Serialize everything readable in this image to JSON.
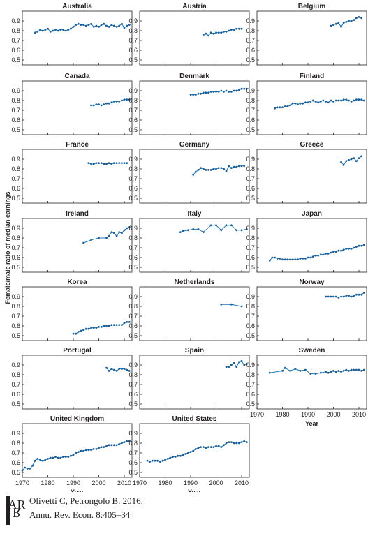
{
  "figure": {
    "ylabel": "Female/male ratio of median earnings",
    "xlabel": "Year"
  },
  "citation": {
    "line1": "Olivetti C, Petrongolo B. 2016.",
    "line2": "Annu. Rev. Econ. 8:405–34",
    "logo_text": "AR"
  },
  "colors": {
    "series": "#1f77b4",
    "axis": "#231f20"
  },
  "chart_data": {
    "type": "line",
    "layout": "small-multiples",
    "xlim": [
      1970,
      2013
    ],
    "ylim": [
      0.45,
      1.0
    ],
    "xticks": [
      "1970",
      "1980",
      "1990",
      "2000",
      "2010"
    ],
    "yticks": [
      "0.5",
      "0.6",
      "0.7",
      "0.8",
      "0.9"
    ],
    "grid": false,
    "panels": [
      {
        "name": "Australia",
        "x": [
          1975,
          1976,
          1977,
          1978,
          1979,
          1980,
          1981,
          1982,
          1983,
          1984,
          1985,
          1986,
          1987,
          1988,
          1989,
          1990,
          1991,
          1992,
          1993,
          1994,
          1995,
          1996,
          1997,
          1998,
          1999,
          2000,
          2001,
          2002,
          2003,
          2004,
          2005,
          2006,
          2007,
          2008,
          2009,
          2010,
          2011,
          2012
        ],
        "y": [
          0.78,
          0.79,
          0.81,
          0.8,
          0.81,
          0.82,
          0.79,
          0.8,
          0.81,
          0.8,
          0.81,
          0.81,
          0.8,
          0.81,
          0.82,
          0.84,
          0.86,
          0.87,
          0.86,
          0.86,
          0.85,
          0.86,
          0.87,
          0.84,
          0.85,
          0.84,
          0.86,
          0.87,
          0.85,
          0.84,
          0.86,
          0.85,
          0.84,
          0.85,
          0.87,
          0.83,
          0.85,
          0.86
        ]
      },
      {
        "name": "Austria",
        "x": [
          1995,
          1996,
          1997,
          1998,
          1999,
          2000,
          2001,
          2002,
          2003,
          2004,
          2005,
          2006,
          2007,
          2008,
          2009,
          2010
        ],
        "y": [
          0.76,
          0.77,
          0.75,
          0.78,
          0.77,
          0.78,
          0.78,
          0.78,
          0.79,
          0.79,
          0.8,
          0.81,
          0.81,
          0.82,
          0.82,
          0.82
        ]
      },
      {
        "name": "Belgium",
        "x": [
          1999,
          2000,
          2001,
          2002,
          2003,
          2004,
          2005,
          2006,
          2007,
          2008,
          2009,
          2010,
          2011
        ],
        "y": [
          0.85,
          0.86,
          0.87,
          0.88,
          0.84,
          0.88,
          0.89,
          0.9,
          0.9,
          0.91,
          0.93,
          0.94,
          0.93
        ]
      },
      {
        "name": "Canada",
        "x": [
          1997,
          1998,
          1999,
          2000,
          2001,
          2002,
          2003,
          2004,
          2005,
          2006,
          2007,
          2008,
          2009,
          2010,
          2011,
          2012
        ],
        "y": [
          0.75,
          0.75,
          0.76,
          0.76,
          0.75,
          0.76,
          0.77,
          0.77,
          0.78,
          0.79,
          0.79,
          0.79,
          0.8,
          0.81,
          0.81,
          0.81
        ]
      },
      {
        "name": "Denmark",
        "x": [
          1990,
          1991,
          1992,
          1993,
          1994,
          1995,
          1996,
          1997,
          1998,
          1999,
          2000,
          2001,
          2002,
          2003,
          2004,
          2005,
          2006,
          2007,
          2008,
          2009,
          2010,
          2011,
          2012
        ],
        "y": [
          0.86,
          0.86,
          0.86,
          0.87,
          0.87,
          0.88,
          0.88,
          0.88,
          0.89,
          0.89,
          0.89,
          0.89,
          0.9,
          0.89,
          0.9,
          0.89,
          0.89,
          0.9,
          0.9,
          0.91,
          0.92,
          0.92,
          0.92
        ]
      },
      {
        "name": "Finland",
        "x": [
          1977,
          1978,
          1979,
          1980,
          1981,
          1982,
          1983,
          1984,
          1985,
          1986,
          1987,
          1988,
          1989,
          1990,
          1991,
          1992,
          1993,
          1994,
          1995,
          1996,
          1997,
          1998,
          1999,
          2000,
          2001,
          2002,
          2003,
          2004,
          2005,
          2006,
          2007,
          2008,
          2009,
          2010,
          2011,
          2012
        ],
        "y": [
          0.72,
          0.73,
          0.73,
          0.73,
          0.74,
          0.74,
          0.75,
          0.77,
          0.77,
          0.76,
          0.77,
          0.77,
          0.78,
          0.78,
          0.79,
          0.8,
          0.79,
          0.78,
          0.79,
          0.8,
          0.79,
          0.78,
          0.8,
          0.79,
          0.8,
          0.8,
          0.8,
          0.81,
          0.81,
          0.8,
          0.79,
          0.8,
          0.81,
          0.81,
          0.81,
          0.8
        ]
      },
      {
        "name": "France",
        "x": [
          1996,
          1997,
          1998,
          1999,
          2000,
          2001,
          2002,
          2003,
          2004,
          2005,
          2006,
          2007,
          2008,
          2009,
          2010,
          2011
        ],
        "y": [
          0.86,
          0.85,
          0.85,
          0.86,
          0.86,
          0.86,
          0.85,
          0.85,
          0.86,
          0.85,
          0.86,
          0.86,
          0.86,
          0.86,
          0.86,
          0.86
        ]
      },
      {
        "name": "Germany",
        "x": [
          1991,
          1992,
          1993,
          1994,
          1995,
          1996,
          1997,
          1998,
          1999,
          2000,
          2001,
          2002,
          2003,
          2004,
          2005,
          2006,
          2007,
          2008,
          2009,
          2010,
          2011
        ],
        "y": [
          0.74,
          0.77,
          0.79,
          0.81,
          0.8,
          0.79,
          0.79,
          0.79,
          0.8,
          0.8,
          0.81,
          0.81,
          0.8,
          0.78,
          0.83,
          0.81,
          0.82,
          0.82,
          0.83,
          0.83,
          0.83
        ]
      },
      {
        "name": "Greece",
        "x": [
          2003,
          2004,
          2005,
          2006,
          2007,
          2008,
          2009,
          2010,
          2011
        ],
        "y": [
          0.87,
          0.84,
          0.88,
          0.89,
          0.9,
          0.91,
          0.88,
          0.91,
          0.93
        ]
      },
      {
        "name": "Ireland",
        "x": [
          1994,
          1997,
          2000,
          2003,
          2004,
          2005,
          2006,
          2007,
          2008,
          2009,
          2010,
          2011,
          2012
        ],
        "y": [
          0.75,
          0.78,
          0.8,
          0.8,
          0.82,
          0.86,
          0.85,
          0.82,
          0.86,
          0.85,
          0.88,
          0.9,
          0.91
        ]
      },
      {
        "name": "Italy",
        "x": [
          1986,
          1987,
          1989,
          1991,
          1993,
          1995,
          1998,
          2000,
          2002,
          2004,
          2006,
          2008,
          2010,
          2012
        ],
        "y": [
          0.86,
          0.87,
          0.88,
          0.89,
          0.89,
          0.86,
          0.93,
          0.93,
          0.88,
          0.93,
          0.93,
          0.88,
          0.88,
          0.89
        ]
      },
      {
        "name": "Japan",
        "x": [
          1975,
          1976,
          1977,
          1978,
          1979,
          1980,
          1981,
          1982,
          1983,
          1984,
          1985,
          1986,
          1987,
          1988,
          1989,
          1990,
          1991,
          1992,
          1993,
          1994,
          1995,
          1996,
          1997,
          1998,
          1999,
          2000,
          2001,
          2002,
          2003,
          2004,
          2005,
          2006,
          2007,
          2008,
          2009,
          2010,
          2011,
          2012
        ],
        "y": [
          0.57,
          0.6,
          0.6,
          0.59,
          0.59,
          0.58,
          0.58,
          0.58,
          0.58,
          0.58,
          0.58,
          0.58,
          0.59,
          0.59,
          0.59,
          0.6,
          0.6,
          0.61,
          0.62,
          0.62,
          0.63,
          0.63,
          0.64,
          0.64,
          0.65,
          0.66,
          0.66,
          0.67,
          0.67,
          0.68,
          0.69,
          0.69,
          0.69,
          0.7,
          0.71,
          0.72,
          0.72,
          0.73
        ]
      },
      {
        "name": "Korea",
        "x": [
          1990,
          1991,
          1992,
          1993,
          1994,
          1995,
          1996,
          1997,
          1998,
          1999,
          2000,
          2001,
          2002,
          2003,
          2004,
          2005,
          2006,
          2007,
          2008,
          2009,
          2010,
          2011,
          2012
        ],
        "y": [
          0.52,
          0.52,
          0.54,
          0.55,
          0.56,
          0.57,
          0.57,
          0.58,
          0.58,
          0.58,
          0.59,
          0.59,
          0.6,
          0.6,
          0.6,
          0.61,
          0.61,
          0.61,
          0.61,
          0.61,
          0.63,
          0.64,
          0.64
        ]
      },
      {
        "name": "Netherlands",
        "x": [
          2002,
          2006,
          2010
        ],
        "y": [
          0.82,
          0.82,
          0.8
        ]
      },
      {
        "name": "Norway",
        "x": [
          1997,
          1998,
          1999,
          2000,
          2001,
          2002,
          2003,
          2004,
          2005,
          2006,
          2007,
          2008,
          2009,
          2010,
          2011,
          2012
        ],
        "y": [
          0.9,
          0.9,
          0.9,
          0.9,
          0.9,
          0.89,
          0.9,
          0.9,
          0.91,
          0.91,
          0.9,
          0.91,
          0.92,
          0.92,
          0.92,
          0.94
        ]
      },
      {
        "name": "Portugal",
        "x": [
          2003,
          2004,
          2005,
          2006,
          2007,
          2008,
          2009,
          2010,
          2011,
          2012
        ],
        "y": [
          0.87,
          0.84,
          0.86,
          0.85,
          0.84,
          0.86,
          0.86,
          0.86,
          0.85,
          0.84
        ]
      },
      {
        "name": "Spain",
        "x": [
          2004,
          2005,
          2006,
          2007,
          2008,
          2009,
          2010,
          2011,
          2012
        ],
        "y": [
          0.88,
          0.88,
          0.9,
          0.92,
          0.88,
          0.93,
          0.94,
          0.9,
          0.91
        ]
      },
      {
        "name": "Sweden",
        "x": [
          1975,
          1980,
          1981,
          1983,
          1985,
          1987,
          1989,
          1991,
          1993,
          1995,
          1997,
          1998,
          1999,
          2000,
          2001,
          2002,
          2003,
          2004,
          2005,
          2006,
          2007,
          2008,
          2009,
          2010,
          2011,
          2012
        ],
        "y": [
          0.82,
          0.84,
          0.87,
          0.84,
          0.86,
          0.84,
          0.85,
          0.81,
          0.81,
          0.82,
          0.83,
          0.82,
          0.83,
          0.84,
          0.83,
          0.84,
          0.83,
          0.84,
          0.85,
          0.84,
          0.85,
          0.85,
          0.85,
          0.85,
          0.84,
          0.85
        ]
      },
      {
        "name": "United Kingdom",
        "x": [
          1970,
          1971,
          1972,
          1973,
          1974,
          1975,
          1976,
          1977,
          1978,
          1979,
          1980,
          1981,
          1982,
          1983,
          1984,
          1985,
          1986,
          1987,
          1988,
          1989,
          1990,
          1991,
          1992,
          1993,
          1994,
          1995,
          1996,
          1997,
          1998,
          1999,
          2000,
          2001,
          2002,
          2003,
          2004,
          2005,
          2006,
          2007,
          2008,
          2009,
          2010,
          2011,
          2012
        ],
        "y": [
          0.52,
          0.55,
          0.54,
          0.54,
          0.57,
          0.62,
          0.64,
          0.63,
          0.62,
          0.63,
          0.64,
          0.65,
          0.65,
          0.66,
          0.65,
          0.65,
          0.66,
          0.66,
          0.66,
          0.67,
          0.68,
          0.7,
          0.71,
          0.72,
          0.72,
          0.73,
          0.73,
          0.73,
          0.74,
          0.74,
          0.75,
          0.76,
          0.76,
          0.77,
          0.78,
          0.78,
          0.78,
          0.78,
          0.79,
          0.8,
          0.81,
          0.82,
          0.82
        ]
      },
      {
        "name": "United States",
        "x": [
          1973,
          1974,
          1975,
          1976,
          1977,
          1978,
          1979,
          1980,
          1981,
          1982,
          1983,
          1984,
          1985,
          1986,
          1987,
          1988,
          1989,
          1990,
          1991,
          1992,
          1993,
          1994,
          1995,
          1996,
          1997,
          1998,
          1999,
          2000,
          2001,
          2002,
          2003,
          2004,
          2005,
          2006,
          2007,
          2008,
          2009,
          2010,
          2011,
          2012
        ],
        "y": [
          0.62,
          0.61,
          0.62,
          0.62,
          0.62,
          0.61,
          0.62,
          0.63,
          0.64,
          0.65,
          0.66,
          0.66,
          0.67,
          0.67,
          0.68,
          0.69,
          0.7,
          0.71,
          0.72,
          0.74,
          0.75,
          0.76,
          0.76,
          0.75,
          0.76,
          0.76,
          0.76,
          0.77,
          0.77,
          0.76,
          0.78,
          0.8,
          0.81,
          0.81,
          0.8,
          0.8,
          0.8,
          0.81,
          0.82,
          0.81
        ]
      }
    ]
  }
}
